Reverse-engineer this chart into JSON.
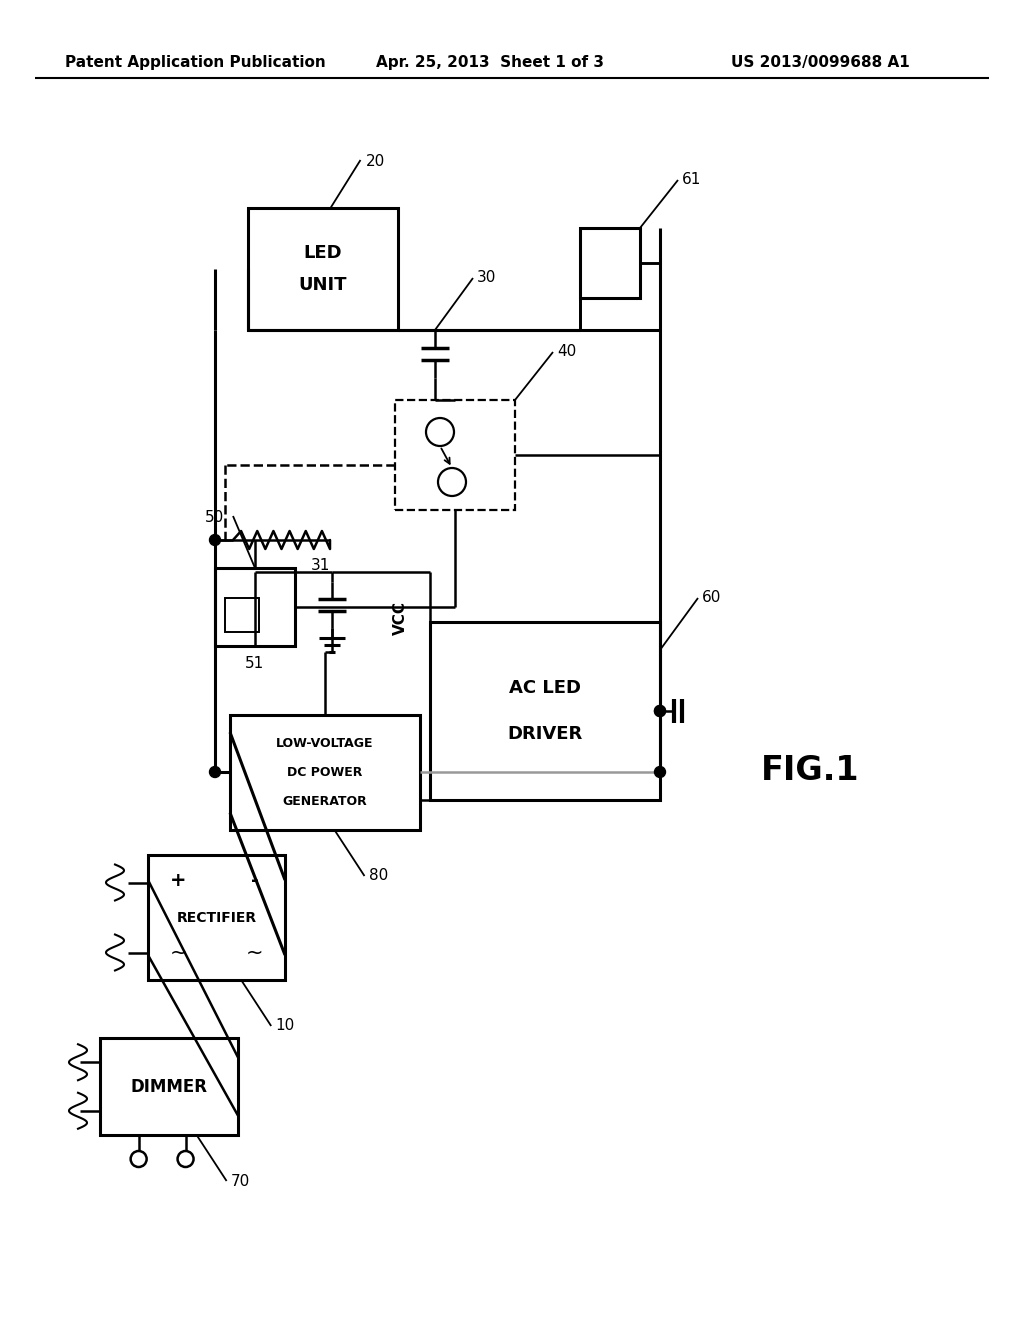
{
  "header_left": "Patent Application Publication",
  "header_mid": "Apr. 25, 2013  Sheet 1 of 3",
  "header_right": "US 2013/0099688 A1",
  "fig_label": "FIG.1",
  "bg": "#ffffff",
  "lc": "#000000",
  "gray": "#999999"
}
